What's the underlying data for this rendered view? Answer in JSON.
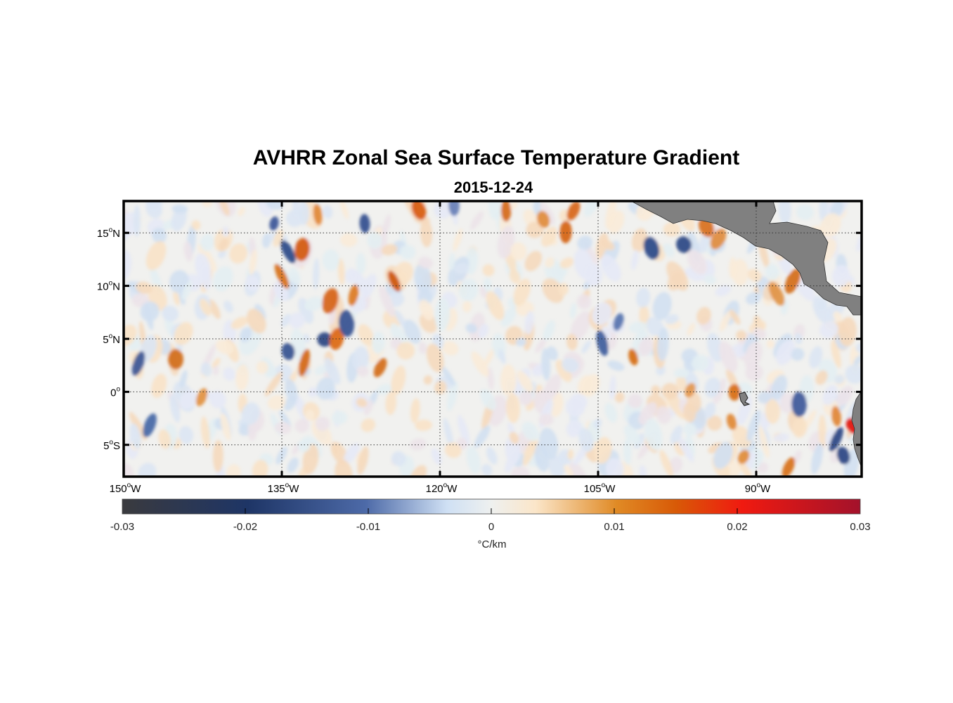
{
  "title": "AVHRR Zonal Sea Surface Temperature Gradient",
  "subtitle": "2015-12-24",
  "map": {
    "lon_range": [
      -150,
      -80
    ],
    "lat_range": [
      -8,
      18
    ],
    "lon_ticks": [
      {
        "value": -150,
        "deg": "150",
        "hemi": "W"
      },
      {
        "value": -135,
        "deg": "135",
        "hemi": "W"
      },
      {
        "value": -120,
        "deg": "120",
        "hemi": "W"
      },
      {
        "value": -105,
        "deg": "105",
        "hemi": "W"
      },
      {
        "value": -90,
        "deg": "90",
        "hemi": "W"
      }
    ],
    "lat_ticks": [
      {
        "value": 15,
        "deg": "15",
        "hemi": "N"
      },
      {
        "value": 10,
        "deg": "10",
        "hemi": "N"
      },
      {
        "value": 5,
        "deg": "5",
        "hemi": "N"
      },
      {
        "value": 0,
        "deg": "0",
        "hemi": ""
      },
      {
        "value": -5,
        "deg": "5",
        "hemi": "S"
      }
    ],
    "grid": "dotted",
    "land_color": "#808080"
  },
  "colorbar": {
    "range": [
      -0.03,
      0.03
    ],
    "ticks": [
      "-0.03",
      "-0.02",
      "-0.01",
      "0",
      "0.01",
      "0.02",
      "0.03"
    ],
    "unit_label": "°C/km",
    "colors": [
      "#3a3a3e",
      "#1e3566",
      "#4d6aa8",
      "#cfe0f4",
      "#eef0ef",
      "#fbe6c9",
      "#e08a25",
      "#d85a07",
      "#f01a10",
      "#a3122b"
    ]
  }
}
